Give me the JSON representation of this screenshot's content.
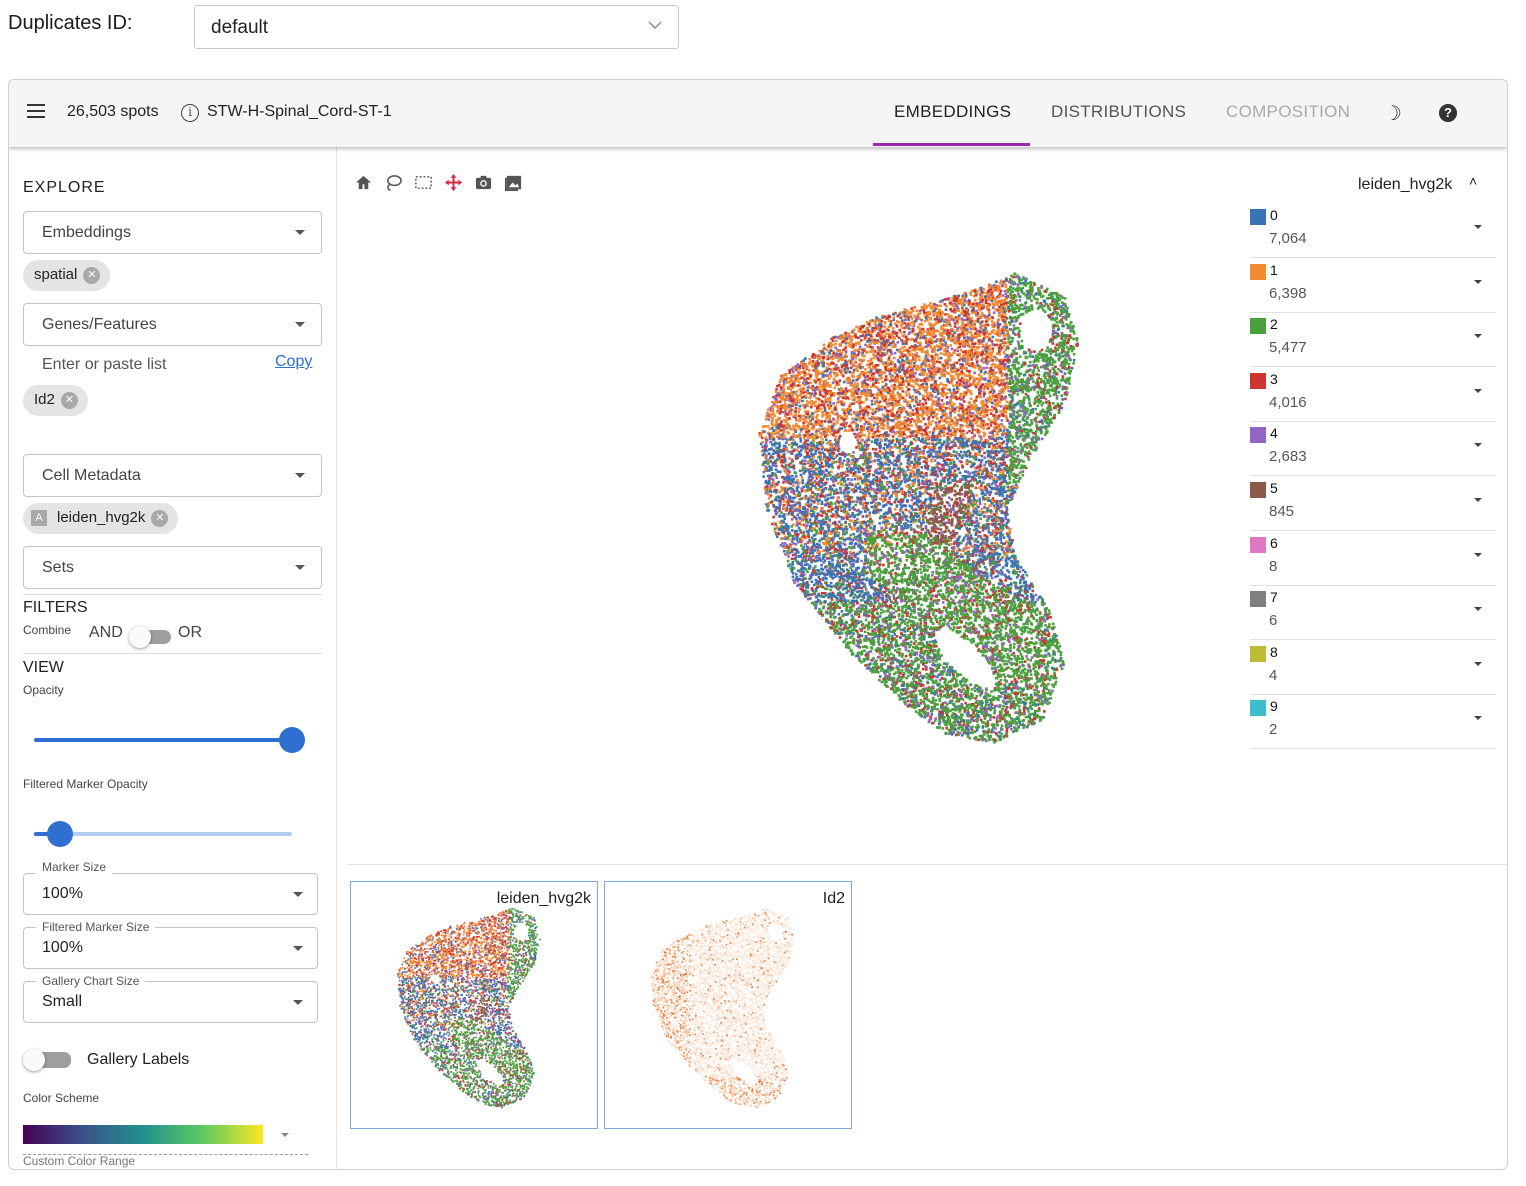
{
  "duplicates": {
    "label": "Duplicates ID:",
    "value": "default"
  },
  "appbar": {
    "spots": "26,503 spots",
    "dataset": "STW-H-Spinal_Cord-ST-1",
    "tabs": {
      "embeddings": "EMBEDDINGS",
      "distributions": "DISTRIBUTIONS",
      "composition": "COMPOSITION"
    }
  },
  "sidebar": {
    "explore_title": "EXPLORE",
    "embeddings_label": "Embeddings",
    "embeddings_chip": "spatial",
    "genes_label": "Genes/Features",
    "paste_placeholder": "Enter or paste list",
    "copy_link": "Copy",
    "gene_chip": "Id2",
    "cell_metadata_label": "Cell Metadata",
    "metadata_chip": "leiden_hvg2k",
    "metadata_chip_badge": "A",
    "sets_label": "Sets",
    "filters_title": "FILTERS",
    "combine_label": "Combine",
    "and_label": "AND",
    "or_label": "OR",
    "combine_or_selected": false,
    "view_title": "VIEW",
    "opacity_label": "Opacity",
    "opacity_value": 1.0,
    "filtered_opacity_label": "Filtered Marker Opacity",
    "filtered_opacity_value": 0.1,
    "marker_size_label": "Marker Size",
    "marker_size_value": "100%",
    "filtered_marker_size_label": "Filtered Marker Size",
    "filtered_marker_size_value": "100%",
    "gallery_chart_size_label": "Gallery Chart Size",
    "gallery_chart_size_value": "Small",
    "gallery_labels_label": "Gallery Labels",
    "gallery_labels_on": false,
    "color_scheme_label": "Color Scheme",
    "custom_color_range_label": "Custom Color Range"
  },
  "toolbar_icons": [
    "home-icon",
    "lasso-icon",
    "box-select-icon",
    "pan-icon",
    "camera-icon",
    "image-icon"
  ],
  "legend": {
    "title": "leiden_hvg2k",
    "items": [
      {
        "category": "0",
        "count": "7,064",
        "color": "#3a73b4"
      },
      {
        "category": "1",
        "count": "6,398",
        "color": "#f28a30"
      },
      {
        "category": "2",
        "count": "5,477",
        "color": "#4aa03c"
      },
      {
        "category": "3",
        "count": "4,016",
        "color": "#cf3530"
      },
      {
        "category": "4",
        "count": "2,683",
        "color": "#9166c2"
      },
      {
        "category": "5",
        "count": "845",
        "color": "#8c5a48"
      },
      {
        "category": "6",
        "count": "8",
        "color": "#df78c2"
      },
      {
        "category": "7",
        "count": "6",
        "color": "#7f7f7f"
      },
      {
        "category": "8",
        "count": "4",
        "color": "#bbbd34"
      },
      {
        "category": "9",
        "count": "2",
        "color": "#3cbdcb"
      }
    ]
  },
  "gallery": [
    {
      "label": "leiden_hvg2k"
    },
    {
      "label": "Id2"
    }
  ]
}
